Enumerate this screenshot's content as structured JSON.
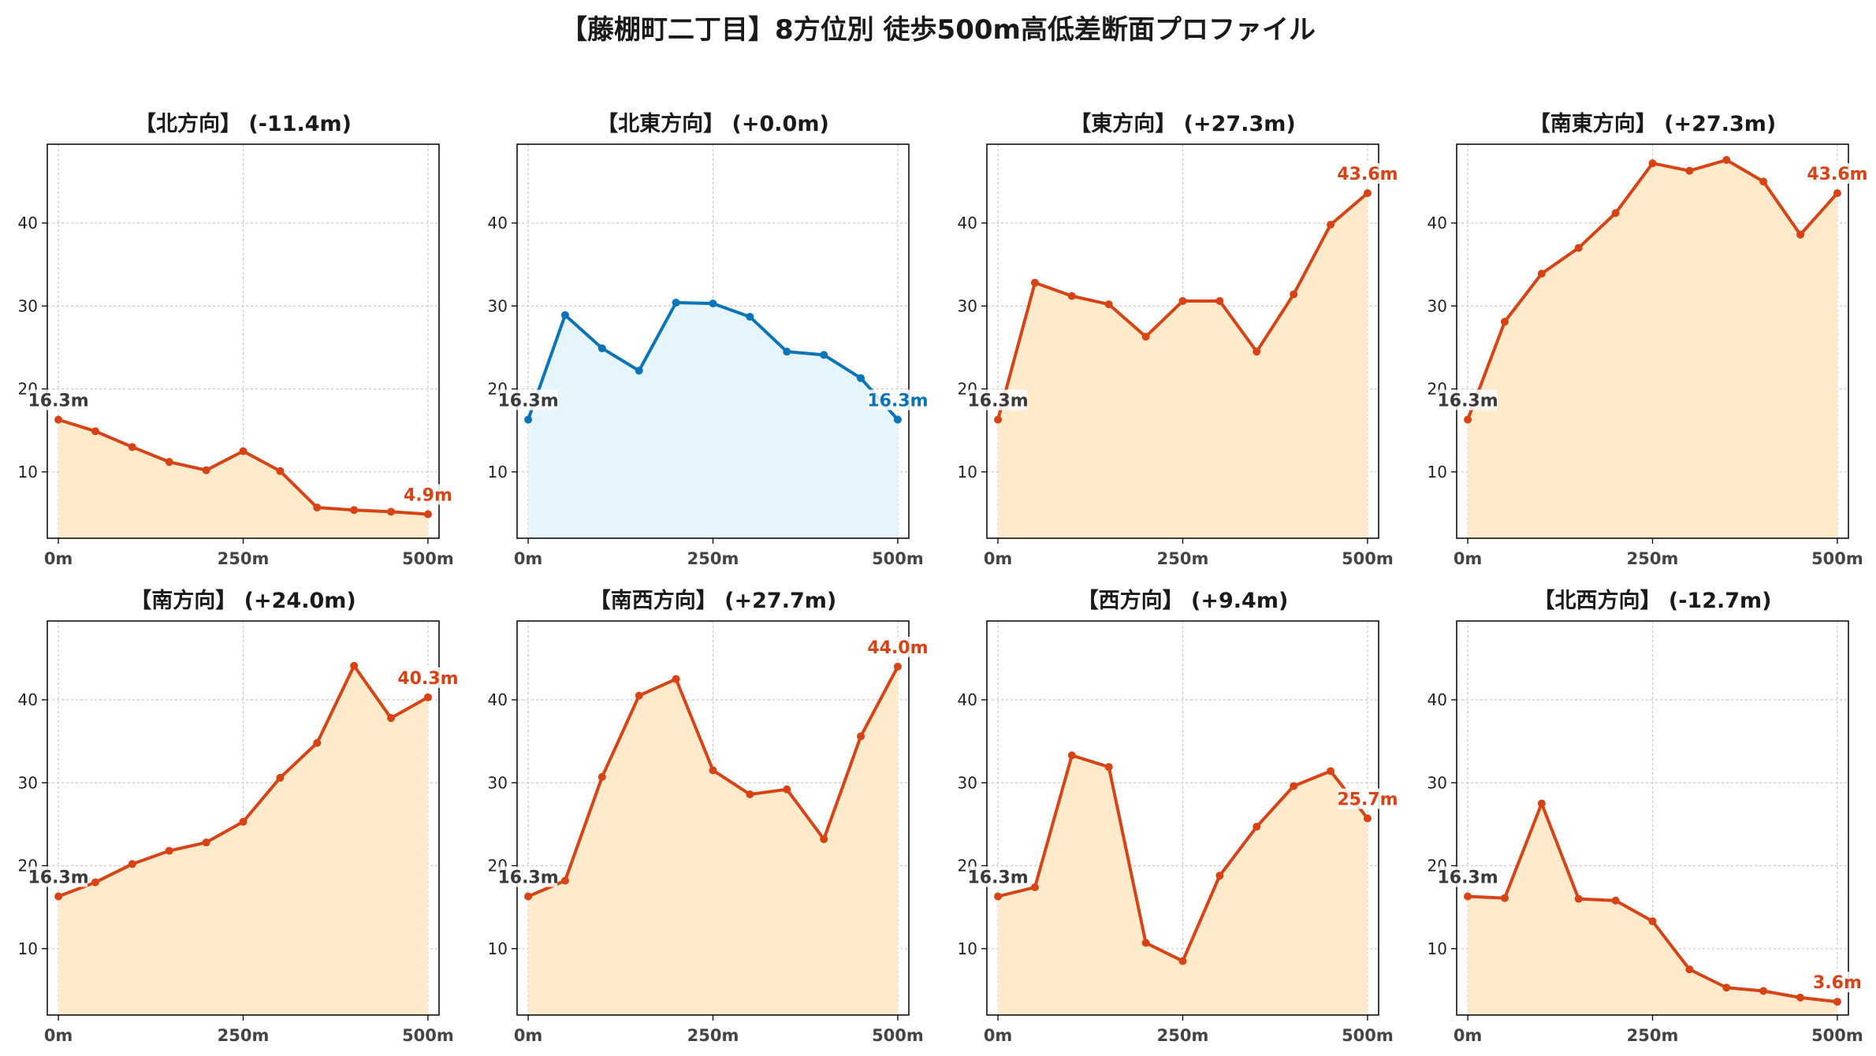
{
  "title": "【藤棚町二丁目】8方位別 徒歩500m高低差断面プロファイル",
  "colors": {
    "warm_line": "#d84315",
    "warm_fill": "#ffebcc",
    "cool_line": "#0a74b8",
    "cool_fill": "#e6f4fb",
    "start_label": "#3a3a3a",
    "grid": "#c8c8c8"
  },
  "chart_data": [
    {
      "type": "area",
      "title": "【北方向】 (-11.4m)",
      "x": [
        0,
        50,
        100,
        150,
        200,
        250,
        300,
        350,
        400,
        450,
        500
      ],
      "values": [
        16.3,
        14.9,
        13.0,
        11.2,
        10.2,
        12.5,
        10.1,
        5.7,
        5.4,
        5.2,
        4.9
      ],
      "start_label": "16.3m",
      "end_label": "4.9m",
      "theme": "warm",
      "xticks": [
        "0m",
        "250m",
        "500m"
      ],
      "yticks": [
        "10",
        "20",
        "30",
        "40"
      ],
      "xlim": [
        -15,
        515
      ],
      "ylim": [
        2,
        49.5
      ],
      "grid": true
    },
    {
      "type": "area",
      "title": "【北東方向】 (+0.0m)",
      "x": [
        0,
        50,
        100,
        150,
        200,
        250,
        300,
        350,
        400,
        450,
        500
      ],
      "values": [
        16.3,
        28.9,
        24.9,
        22.2,
        30.4,
        30.3,
        28.7,
        24.5,
        24.1,
        21.3,
        16.3
      ],
      "start_label": "16.3m",
      "end_label": "16.3m",
      "theme": "cool",
      "xticks": [
        "0m",
        "250m",
        "500m"
      ],
      "yticks": [
        "10",
        "20",
        "30",
        "40"
      ],
      "xlim": [
        -15,
        515
      ],
      "ylim": [
        2,
        49.5
      ],
      "grid": true
    },
    {
      "type": "area",
      "title": "【東方向】 (+27.3m)",
      "x": [
        0,
        50,
        100,
        150,
        200,
        250,
        300,
        350,
        400,
        450,
        500
      ],
      "values": [
        16.3,
        32.8,
        31.2,
        30.2,
        26.3,
        30.6,
        30.6,
        24.5,
        31.4,
        39.8,
        43.6
      ],
      "start_label": "16.3m",
      "end_label": "43.6m",
      "theme": "warm",
      "xticks": [
        "0m",
        "250m",
        "500m"
      ],
      "yticks": [
        "10",
        "20",
        "30",
        "40"
      ],
      "xlim": [
        -15,
        515
      ],
      "ylim": [
        2,
        49.5
      ],
      "grid": true
    },
    {
      "type": "area",
      "title": "【南東方向】 (+27.3m)",
      "x": [
        0,
        50,
        100,
        150,
        200,
        250,
        300,
        350,
        400,
        450,
        500
      ],
      "values": [
        16.3,
        28.1,
        33.9,
        37.0,
        41.2,
        47.2,
        46.3,
        47.6,
        45.0,
        38.6,
        43.6
      ],
      "start_label": "16.3m",
      "end_label": "43.6m",
      "theme": "warm",
      "xticks": [
        "0m",
        "250m",
        "500m"
      ],
      "yticks": [
        "10",
        "20",
        "30",
        "40"
      ],
      "xlim": [
        -15,
        515
      ],
      "ylim": [
        2,
        49.5
      ],
      "grid": true
    },
    {
      "type": "area",
      "title": "【南方向】 (+24.0m)",
      "x": [
        0,
        50,
        100,
        150,
        200,
        250,
        300,
        350,
        400,
        450,
        500
      ],
      "values": [
        16.3,
        18.0,
        20.2,
        21.8,
        22.8,
        25.3,
        30.6,
        34.8,
        44.1,
        37.8,
        40.3
      ],
      "start_label": "16.3m",
      "end_label": "40.3m",
      "theme": "warm",
      "xticks": [
        "0m",
        "250m",
        "500m"
      ],
      "yticks": [
        "10",
        "20",
        "30",
        "40"
      ],
      "xlim": [
        -15,
        515
      ],
      "ylim": [
        2,
        49.5
      ],
      "grid": true
    },
    {
      "type": "area",
      "title": "【南西方向】 (+27.7m)",
      "x": [
        0,
        50,
        100,
        150,
        200,
        250,
        300,
        350,
        400,
        450,
        500
      ],
      "values": [
        16.3,
        18.2,
        30.7,
        40.5,
        42.5,
        31.5,
        28.6,
        29.2,
        23.2,
        35.6,
        44.0
      ],
      "start_label": "16.3m",
      "end_label": "44.0m",
      "theme": "warm",
      "xticks": [
        "0m",
        "250m",
        "500m"
      ],
      "yticks": [
        "10",
        "20",
        "30",
        "40"
      ],
      "xlim": [
        -15,
        515
      ],
      "ylim": [
        2,
        49.5
      ],
      "grid": true
    },
    {
      "type": "area",
      "title": "【西方向】 (+9.4m)",
      "x": [
        0,
        50,
        100,
        150,
        200,
        250,
        300,
        350,
        400,
        450,
        500
      ],
      "values": [
        16.3,
        17.4,
        33.3,
        31.9,
        10.7,
        8.5,
        18.8,
        24.7,
        29.6,
        31.4,
        25.7
      ],
      "start_label": "16.3m",
      "end_label": "25.7m",
      "theme": "warm",
      "xticks": [
        "0m",
        "250m",
        "500m"
      ],
      "yticks": [
        "10",
        "20",
        "30",
        "40"
      ],
      "xlim": [
        -15,
        515
      ],
      "ylim": [
        2,
        49.5
      ],
      "grid": true
    },
    {
      "type": "area",
      "title": "【北西方向】 (-12.7m)",
      "x": [
        0,
        50,
        100,
        150,
        200,
        250,
        300,
        350,
        400,
        450,
        500
      ],
      "values": [
        16.3,
        16.1,
        27.5,
        16.0,
        15.8,
        13.3,
        7.5,
        5.3,
        4.9,
        4.1,
        3.6
      ],
      "start_label": "16.3m",
      "end_label": "3.6m",
      "theme": "warm",
      "xticks": [
        "0m",
        "250m",
        "500m"
      ],
      "yticks": [
        "10",
        "20",
        "30",
        "40"
      ],
      "xlim": [
        -15,
        515
      ],
      "ylim": [
        2,
        49.5
      ],
      "grid": true
    }
  ]
}
